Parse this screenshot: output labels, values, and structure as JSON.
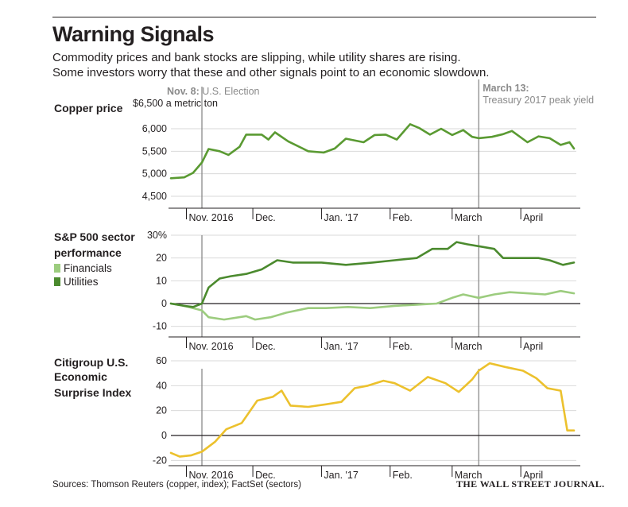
{
  "title": "Warning Signals",
  "subtitle": [
    "Commodity prices and bank stocks are slipping, while utility shares are rising.",
    "Some investors worry that these and other signals point to an economic slowdown."
  ],
  "annotations": {
    "election": {
      "date_bold": "Nov. 8:",
      "text": "U.S. Election"
    },
    "treasury": {
      "date_bold": "March 13:",
      "text": "Treasury 2017 peak yield"
    }
  },
  "month_labels": [
    "Nov. 2016",
    "Dec.",
    "Jan. '17",
    "Feb.",
    "March",
    "April"
  ],
  "source": "Sources: Thomson Reuters (copper, index); FactSet (sectors)",
  "credit": "THE WALL STREET JOURNAL.",
  "colors": {
    "copper": "#5a9a32",
    "financials": "#9ccc7e",
    "utilities": "#4b8a2e",
    "surprise": "#ecc12d",
    "gray": "#8a8a8a"
  },
  "chart_data": [
    {
      "type": "line",
      "title": "Copper price",
      "ylabel": "$6,500 a metric ton",
      "yticks": [
        "6,000",
        "5,500",
        "5,000",
        "4,500"
      ],
      "ylim": [
        4400,
        6600
      ],
      "x_range": [
        "2016-10-25",
        "2017-04-25"
      ],
      "series": [
        {
          "color": "copper",
          "points": [
            [
              "2016-10-25",
              4900
            ],
            [
              "2016-10-31",
              4920
            ],
            [
              "2016-11-04",
              5020
            ],
            [
              "2016-11-08",
              5250
            ],
            [
              "2016-11-11",
              5550
            ],
            [
              "2016-11-16",
              5500
            ],
            [
              "2016-11-20",
              5420
            ],
            [
              "2016-11-25",
              5600
            ],
            [
              "2016-11-28",
              5870
            ],
            [
              "2016-12-05",
              5870
            ],
            [
              "2016-12-08",
              5760
            ],
            [
              "2016-12-11",
              5920
            ],
            [
              "2016-12-17",
              5720
            ],
            [
              "2016-12-26",
              5500
            ],
            [
              "2017-01-02",
              5470
            ],
            [
              "2017-01-07",
              5560
            ],
            [
              "2017-01-12",
              5780
            ],
            [
              "2017-01-20",
              5700
            ],
            [
              "2017-01-25",
              5860
            ],
            [
              "2017-01-30",
              5870
            ],
            [
              "2017-02-04",
              5760
            ],
            [
              "2017-02-10",
              6100
            ],
            [
              "2017-02-14",
              6020
            ],
            [
              "2017-02-19",
              5870
            ],
            [
              "2017-02-24",
              6000
            ],
            [
              "2017-03-01",
              5860
            ],
            [
              "2017-03-06",
              5970
            ],
            [
              "2017-03-10",
              5820
            ],
            [
              "2017-03-13",
              5790
            ],
            [
              "2017-03-19",
              5820
            ],
            [
              "2017-03-24",
              5880
            ],
            [
              "2017-03-28",
              5950
            ],
            [
              "2017-04-04",
              5700
            ],
            [
              "2017-04-09",
              5830
            ],
            [
              "2017-04-14",
              5790
            ],
            [
              "2017-04-19",
              5640
            ],
            [
              "2017-04-23",
              5700
            ],
            [
              "2017-04-25",
              5560
            ]
          ]
        }
      ]
    },
    {
      "type": "line",
      "title": "S&P 500 sector performance",
      "yticks": [
        "30%",
        "20",
        "10",
        "0",
        "-10"
      ],
      "ylim": [
        -12,
        31
      ],
      "x_range": [
        "2016-10-25",
        "2017-04-25"
      ],
      "series": [
        {
          "name": "Financials",
          "color": "financials",
          "points": [
            [
              "2016-10-25",
              0
            ],
            [
              "2016-10-31",
              -1
            ],
            [
              "2016-11-04",
              -2
            ],
            [
              "2016-11-08",
              -3
            ],
            [
              "2016-11-11",
              -6
            ],
            [
              "2016-11-18",
              -7
            ],
            [
              "2016-11-28",
              -5.5
            ],
            [
              "2016-12-02",
              -7
            ],
            [
              "2016-12-09",
              -6
            ],
            [
              "2016-12-16",
              -4
            ],
            [
              "2016-12-26",
              -2
            ],
            [
              "2017-01-03",
              -2
            ],
            [
              "2017-01-13",
              -1.5
            ],
            [
              "2017-01-23",
              -2
            ],
            [
              "2017-02-03",
              -1
            ],
            [
              "2017-02-13",
              -0.5
            ],
            [
              "2017-02-22",
              0
            ],
            [
              "2017-03-01",
              2.5
            ],
            [
              "2017-03-06",
              4
            ],
            [
              "2017-03-13",
              2.5
            ],
            [
              "2017-03-20",
              4
            ],
            [
              "2017-03-27",
              5
            ],
            [
              "2017-04-04",
              4.5
            ],
            [
              "2017-04-12",
              4
            ],
            [
              "2017-04-19",
              5.5
            ],
            [
              "2017-04-25",
              4.5
            ]
          ]
        },
        {
          "name": "Utilities",
          "color": "utilities",
          "points": [
            [
              "2016-10-25",
              0
            ],
            [
              "2016-10-31",
              -1
            ],
            [
              "2016-11-04",
              -1.5
            ],
            [
              "2016-11-08",
              0
            ],
            [
              "2016-11-11",
              7
            ],
            [
              "2016-11-16",
              11
            ],
            [
              "2016-11-21",
              12
            ],
            [
              "2016-11-28",
              13
            ],
            [
              "2016-12-05",
              15
            ],
            [
              "2016-12-12",
              19
            ],
            [
              "2016-12-19",
              18
            ],
            [
              "2017-01-01",
              18
            ],
            [
              "2017-01-12",
              17
            ],
            [
              "2017-01-24",
              18
            ],
            [
              "2017-02-03",
              19
            ],
            [
              "2017-02-13",
              20
            ],
            [
              "2017-02-20",
              24
            ],
            [
              "2017-02-27",
              24
            ],
            [
              "2017-03-03",
              27
            ],
            [
              "2017-03-08",
              26
            ],
            [
              "2017-03-14",
              25
            ],
            [
              "2017-03-20",
              24
            ],
            [
              "2017-03-24",
              20
            ],
            [
              "2017-04-02",
              20
            ],
            [
              "2017-04-09",
              20
            ],
            [
              "2017-04-14",
              19
            ],
            [
              "2017-04-20",
              17
            ],
            [
              "2017-04-25",
              18
            ]
          ]
        }
      ]
    },
    {
      "type": "line",
      "title": "Citigroup U.S. Economic Surprise Index",
      "yticks": [
        "60",
        "40",
        "20",
        "0",
        "-20"
      ],
      "ylim": [
        -22,
        62
      ],
      "x_range": [
        "2016-10-25",
        "2017-04-25"
      ],
      "series": [
        {
          "color": "surprise",
          "points": [
            [
              "2016-10-25",
              -14
            ],
            [
              "2016-10-29",
              -17
            ],
            [
              "2016-11-03",
              -16
            ],
            [
              "2016-11-08",
              -13
            ],
            [
              "2016-11-14",
              -5
            ],
            [
              "2016-11-19",
              5
            ],
            [
              "2016-11-26",
              10
            ],
            [
              "2016-12-03",
              28
            ],
            [
              "2016-12-10",
              31
            ],
            [
              "2016-12-14",
              36
            ],
            [
              "2016-12-18",
              24
            ],
            [
              "2016-12-26",
              23
            ],
            [
              "2017-01-03",
              25
            ],
            [
              "2017-01-10",
              27
            ],
            [
              "2017-01-16",
              38
            ],
            [
              "2017-01-22",
              40
            ],
            [
              "2017-01-29",
              44
            ],
            [
              "2017-02-03",
              42
            ],
            [
              "2017-02-10",
              36
            ],
            [
              "2017-02-18",
              47
            ],
            [
              "2017-02-26",
              42
            ],
            [
              "2017-03-04",
              35
            ],
            [
              "2017-03-10",
              45
            ],
            [
              "2017-03-13",
              52
            ],
            [
              "2017-03-18",
              58
            ],
            [
              "2017-03-25",
              55
            ],
            [
              "2017-04-02",
              52
            ],
            [
              "2017-04-08",
              46
            ],
            [
              "2017-04-13",
              38
            ],
            [
              "2017-04-19",
              36
            ],
            [
              "2017-04-22",
              4
            ],
            [
              "2017-04-25",
              4
            ]
          ]
        }
      ]
    }
  ]
}
